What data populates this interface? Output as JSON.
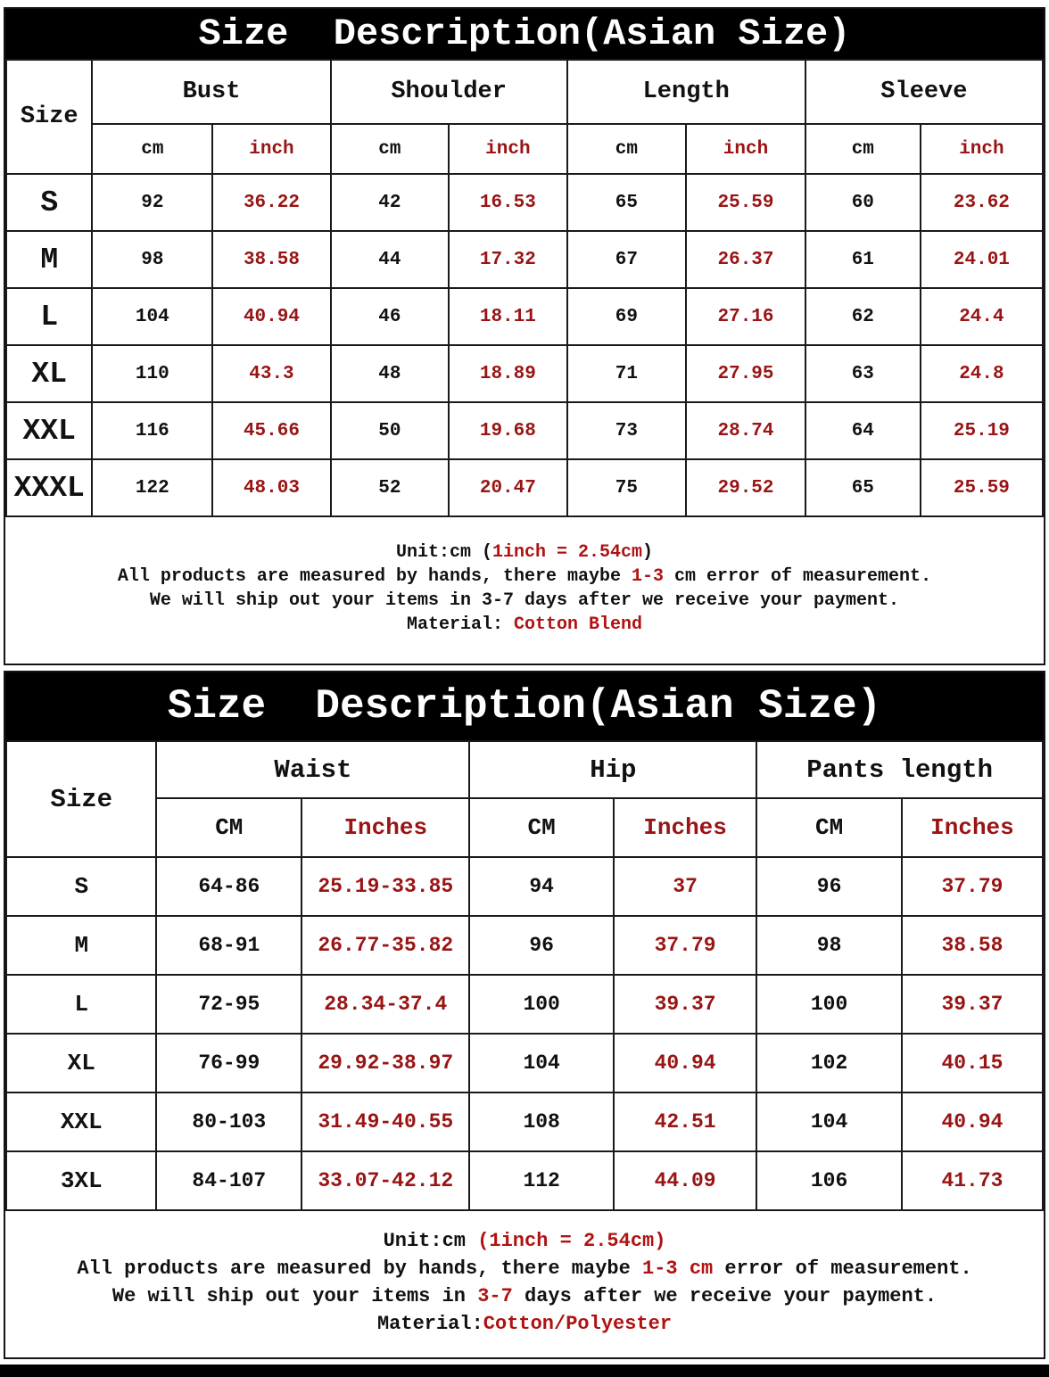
{
  "colors": {
    "accent_red": "#991414",
    "note_red": "#b01212",
    "bar_black": "#000000"
  },
  "table1": {
    "title": "Size  Description(Asian Size)",
    "size_header": "Size",
    "groups": [
      "Bust",
      "Shoulder",
      "Length",
      "Sleeve"
    ],
    "unit_cm": "cm",
    "unit_inch": "inch",
    "rows": [
      [
        "S",
        "92",
        "36.22",
        "42",
        "16.53",
        "65",
        "25.59",
        "60",
        "23.62"
      ],
      [
        "M",
        "98",
        "38.58",
        "44",
        "17.32",
        "67",
        "26.37",
        "61",
        "24.01"
      ],
      [
        "L",
        "104",
        "40.94",
        "46",
        "18.11",
        "69",
        "27.16",
        "62",
        "24.4"
      ],
      [
        "XL",
        "110",
        "43.3",
        "48",
        "18.89",
        "71",
        "27.95",
        "63",
        "24.8"
      ],
      [
        "XXL",
        "116",
        "45.66",
        "50",
        "19.68",
        "73",
        "28.74",
        "64",
        "25.19"
      ],
      [
        "XXXL",
        "122",
        "48.03",
        "52",
        "20.47",
        "75",
        "29.52",
        "65",
        "25.59"
      ]
    ],
    "notes": [
      {
        "pre": "Unit:cm (",
        "red": "1inch = 2.54cm",
        "post": ")"
      },
      {
        "pre": "All products are measured by hands, there maybe ",
        "red": "1-3",
        "post": " cm error of measurement."
      },
      {
        "pre": "We will ship out your items in 3-7 days after we receive your payment.",
        "red": "",
        "post": ""
      },
      {
        "pre": "Material: ",
        "red": "Cotton Blend",
        "post": ""
      }
    ]
  },
  "table2": {
    "title": "Size  Description(Asian Size)",
    "size_header": "Size",
    "groups": [
      "Waist",
      "Hip",
      "Pants length"
    ],
    "unit_cm": "CM",
    "unit_inch": "Inches",
    "rows": [
      [
        "S",
        "64-86",
        "25.19-33.85",
        "94",
        "37",
        "96",
        "37.79"
      ],
      [
        "M",
        "68-91",
        "26.77-35.82",
        "96",
        "37.79",
        "98",
        "38.58"
      ],
      [
        "L",
        "72-95",
        "28.34-37.4",
        "100",
        "39.37",
        "100",
        "39.37"
      ],
      [
        "XL",
        "76-99",
        "29.92-38.97",
        "104",
        "40.94",
        "102",
        "40.15"
      ],
      [
        "XXL",
        "80-103",
        "31.49-40.55",
        "108",
        "42.51",
        "104",
        "40.94"
      ],
      [
        "3XL",
        "84-107",
        "33.07-42.12",
        "112",
        "44.09",
        "106",
        "41.73"
      ]
    ],
    "notes": [
      {
        "pre": "Unit:cm ",
        "red": "(1inch = 2.54cm)",
        "post": ""
      },
      {
        "pre": "All products are measured by hands, there maybe ",
        "red": "1-3 cm",
        "post": " error of measurement."
      },
      {
        "pre": "We will ship out your items in ",
        "red": "3-7",
        "post": " days after we receive your payment."
      },
      {
        "pre": "Material:",
        "red": "Cotton/Polyester",
        "post": ""
      }
    ]
  }
}
